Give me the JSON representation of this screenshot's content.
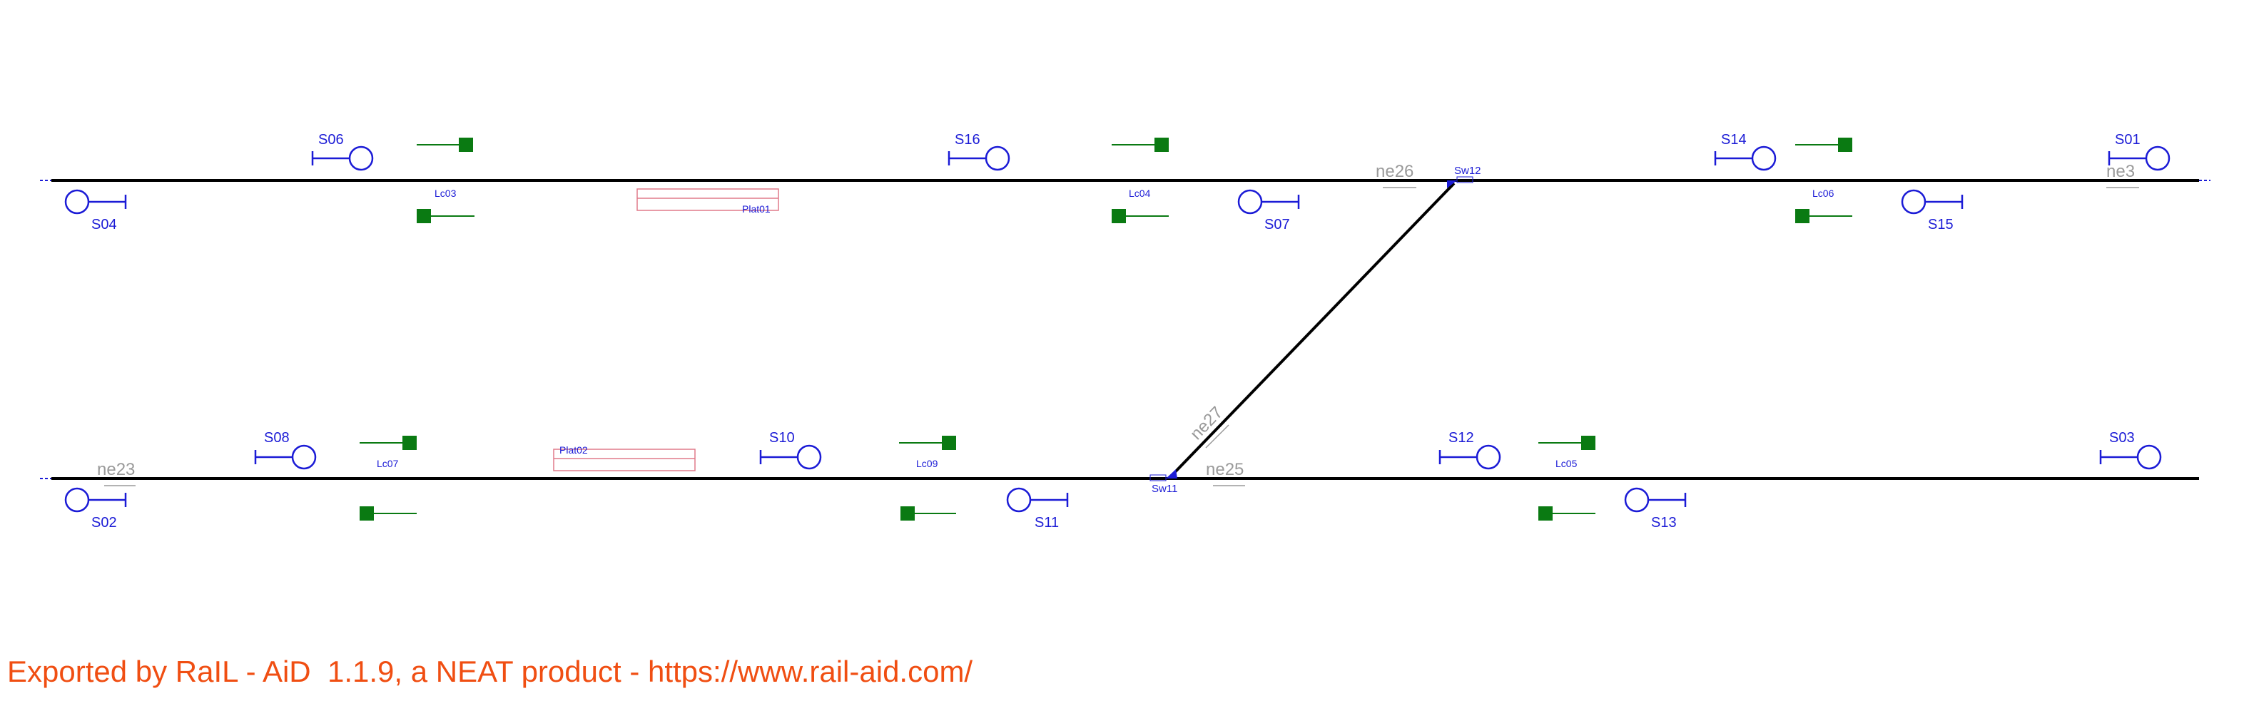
{
  "colors": {
    "track": "#000000",
    "signal": "#1b1bd6",
    "detector": "#0a7a12",
    "platform": "#e07a8a",
    "net_element": "#9a9a9a",
    "footer": "#f04e12"
  },
  "icons": {
    "signal": "signal-icon",
    "switch": "switch-icon",
    "level_crossing": "level-crossing-icon",
    "platform": "platform-icon"
  },
  "net_elements": {
    "ne26": "ne26",
    "ne3": "ne3",
    "ne23": "ne23",
    "ne25": "ne25",
    "ne27": "ne27"
  },
  "switches": {
    "sw12": "Sw12",
    "sw11": "Sw11"
  },
  "platforms": {
    "plat01": "Plat01",
    "plat02": "Plat02"
  },
  "level_crossings": {
    "lc03": "Lc03",
    "lc04": "Lc04",
    "lc06": "Lc06",
    "lc07": "Lc07",
    "lc09": "Lc09",
    "lc05": "Lc05"
  },
  "signals": {
    "s06": "S06",
    "s16": "S16",
    "s14": "S14",
    "s01": "S01",
    "s04": "S04",
    "s07": "S07",
    "s15": "S15",
    "s08": "S08",
    "s10": "S10",
    "s12": "S12",
    "s03": "S03",
    "s02": "S02",
    "s11": "S11",
    "s13": "S13"
  },
  "footer": {
    "text": "Exported by RaIL - AiD  1.1.9, a NEAT product - https://www.rail-aid.com/"
  }
}
